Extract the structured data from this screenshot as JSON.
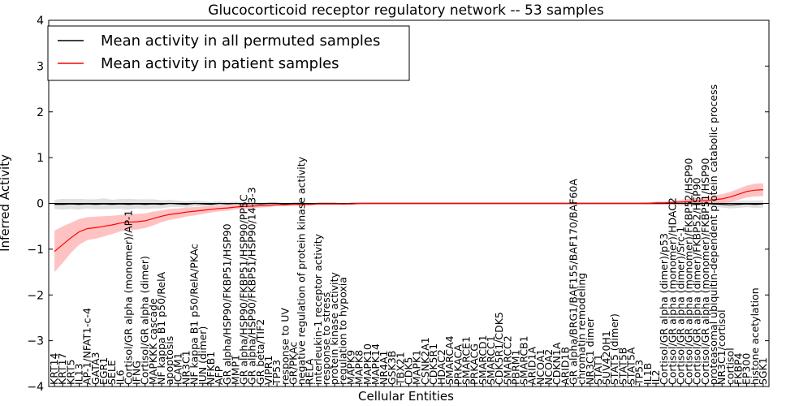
{
  "chart_data": {
    "type": "line",
    "title": "Glucocorticoid receptor regulatory network -- 53 samples",
    "xlabel": "Cellular Entities",
    "ylabel": "Inferred Activity",
    "ylim": [
      -4,
      4
    ],
    "yticks": [
      -4,
      -3,
      -2,
      -1,
      0,
      1,
      2,
      3,
      4
    ],
    "grid": false,
    "legend_position": "upper-left",
    "entities": [
      "KRT14",
      "KRT17",
      "KRT5",
      "IL13",
      "AP-1/NFAT1-c-4",
      "GATA3",
      "EGR1",
      "SELE",
      "IL6",
      "Cortisol/GR alpha (monomer)/AP-1",
      "IFNG",
      "Cortisol/GR alpha (dimer)",
      "MAPKKK cascade",
      "NF kappa B1 p50/RelA",
      "apoptosis",
      "ICAM1",
      "NR3C1",
      "NF kappa B1 p50/RelA/PKAc",
      "JUN (dimer)",
      "NFKB1",
      "AFP",
      "GR alpha/HSP90/FKBP51/HSP90",
      "MMP1",
      "GR alpha/HSP90/FKBP51/HSP90/PP5C",
      "GR alpha/HSP90/FKBP51/HSP90/14-3-3",
      "GR beta/TIF2",
      "VIPR1",
      "TP53",
      "response to UV",
      "GR/PKAc",
      "negative regulation of protein kinase activity",
      "RELA",
      "interleukin-1 receptor activity",
      "response to stress",
      "protein kinase activity",
      "regulation to hypoxia",
      "MAPK9",
      "MAPK8",
      "MAPK10",
      "MAPK14",
      "NR4A1",
      "GSK3B",
      "TBX21",
      "CDK5",
      "MAPK1",
      "CSNK2A1",
      "CDK5R1",
      "HDAC2",
      "SMARCA4",
      "PRKACA",
      "SMARCE1",
      "PRKACG",
      "SMARCD1",
      "SMARCC1",
      "CDK5R1/CDK5",
      "SMARCC2",
      "PBRM1",
      "SMARCB1",
      "ARID1A",
      "NCOA1",
      "NCOA2",
      "CDKN1A",
      "ARID1B",
      "GR alpha/BRG1/BAF155/BAF170/BAF60A",
      "chromatin remodeling",
      "NR3C1 dimer",
      "STAT1",
      "SUV420H1",
      "STAT5 (dimer)",
      "STAT5B",
      "STAT5A",
      "TP53",
      "IL1B",
      "IL2",
      "Cortisol/GR alpha (dimer)/p53",
      "Cortisol/GR alpha (monomer)/HDAC2",
      "Cortisol/GR alpha (dimer)/Src-1",
      "Cortisol/GR alpha (monomer)/FKBP52/HSP90",
      "Cortisol/GR alpha (dimer)/FKBP52/HSP90",
      "Cortisol/GR alpha (monomer)/FKBP51/HSP90",
      "proteasomal ubiquitin-dependent protein catabolic process",
      "NR3C1/cortisol",
      "cortisol",
      "FKBP4",
      "EP300",
      "histone acetylation",
      "SGK1"
    ],
    "series": [
      {
        "name": "Mean activity in all permuted samples",
        "color": "#000000",
        "band_color": "#bbbbbb",
        "values": [
          -0.02,
          -0.02,
          -0.01,
          -0.02,
          -0.01,
          -0.02,
          -0.01,
          -0.02,
          -0.01,
          -0.02,
          -0.01,
          -0.02,
          -0.01,
          -0.02,
          0.0,
          -0.01,
          -0.02,
          0.0,
          -0.01,
          -0.02,
          0.0,
          -0.01,
          0.0,
          -0.01,
          0.0,
          -0.01,
          0.0,
          0.0,
          -0.01,
          0.0,
          0.0,
          -0.01,
          0.0,
          0.0,
          0.0,
          -0.01,
          0.0,
          0.0,
          0.0,
          0.0,
          0.0,
          0.0,
          0.0,
          0.0,
          0.0,
          0.0,
          0.0,
          0.0,
          0.0,
          0.0,
          0.0,
          0.0,
          0.0,
          0.0,
          0.0,
          0.0,
          0.0,
          0.0,
          0.0,
          0.0,
          0.0,
          0.0,
          0.0,
          0.0,
          0.0,
          0.0,
          0.0,
          0.0,
          0.0,
          0.0,
          0.0,
          0.0,
          0.0,
          0.0,
          0.0,
          0.0,
          0.0,
          0.0,
          0.0,
          0.0,
          -0.01,
          -0.02,
          -0.03,
          -0.02,
          -0.01,
          -0.02,
          -0.01
        ],
        "band": [
          0.1,
          0.12,
          0.11,
          0.12,
          0.1,
          0.11,
          0.12,
          0.1,
          0.11,
          0.12,
          0.1,
          0.11,
          0.1,
          0.09,
          0.08,
          0.07,
          0.07,
          0.06,
          0.06,
          0.05,
          0.05,
          0.04,
          0.04,
          0.04,
          0.03,
          0.03,
          0.03,
          0.03,
          0.02,
          0.02,
          0.02,
          0.02,
          0.02,
          0.02,
          0.02,
          0.02,
          0.02,
          0.02,
          0.02,
          0.02,
          0.02,
          0.02,
          0.02,
          0.02,
          0.02,
          0.02,
          0.02,
          0.02,
          0.02,
          0.02,
          0.02,
          0.02,
          0.02,
          0.02,
          0.02,
          0.02,
          0.02,
          0.02,
          0.02,
          0.02,
          0.02,
          0.02,
          0.02,
          0.02,
          0.02,
          0.02,
          0.02,
          0.02,
          0.02,
          0.02,
          0.02,
          0.02,
          0.03,
          0.03,
          0.03,
          0.03,
          0.04,
          0.04,
          0.05,
          0.05,
          0.06,
          0.07,
          0.08,
          0.08,
          0.07,
          0.08,
          0.08
        ]
      },
      {
        "name": "Mean activity in patient samples",
        "color": "#ff0000",
        "band_color": "#ff9999",
        "values": [
          -1.05,
          -0.9,
          -0.75,
          -0.62,
          -0.55,
          -0.53,
          -0.5,
          -0.47,
          -0.43,
          -0.41,
          -0.4,
          -0.38,
          -0.33,
          -0.28,
          -0.24,
          -0.22,
          -0.19,
          -0.17,
          -0.15,
          -0.13,
          -0.11,
          -0.1,
          -0.08,
          -0.07,
          -0.06,
          -0.05,
          -0.04,
          -0.03,
          -0.03,
          -0.02,
          -0.02,
          -0.02,
          -0.01,
          -0.01,
          -0.01,
          -0.01,
          -0.01,
          0.0,
          0.0,
          0.0,
          0.0,
          0.0,
          0.0,
          0.0,
          0.0,
          0.0,
          0.0,
          0.0,
          0.0,
          0.0,
          0.0,
          0.0,
          0.0,
          0.0,
          0.0,
          0.0,
          0.0,
          0.0,
          0.0,
          0.0,
          0.0,
          0.0,
          0.0,
          0.0,
          0.0,
          0.0,
          0.0,
          0.0,
          0.0,
          0.0,
          0.0,
          0.0,
          0.0,
          0.01,
          0.01,
          0.02,
          0.03,
          0.04,
          0.05,
          0.06,
          0.08,
          0.1,
          0.14,
          0.2,
          0.26,
          0.29,
          0.3
        ],
        "band": [
          0.45,
          0.4,
          0.33,
          0.28,
          0.25,
          0.24,
          0.22,
          0.2,
          0.18,
          0.18,
          0.17,
          0.16,
          0.15,
          0.13,
          0.12,
          0.11,
          0.1,
          0.09,
          0.08,
          0.07,
          0.06,
          0.06,
          0.05,
          0.05,
          0.04,
          0.04,
          0.04,
          0.03,
          0.03,
          0.03,
          0.03,
          0.03,
          0.02,
          0.02,
          0.02,
          0.02,
          0.02,
          0.02,
          0.02,
          0.02,
          0.02,
          0.02,
          0.02,
          0.02,
          0.02,
          0.02,
          0.02,
          0.02,
          0.02,
          0.02,
          0.02,
          0.02,
          0.02,
          0.02,
          0.02,
          0.02,
          0.02,
          0.02,
          0.02,
          0.02,
          0.02,
          0.02,
          0.02,
          0.02,
          0.02,
          0.02,
          0.02,
          0.02,
          0.02,
          0.02,
          0.02,
          0.02,
          0.02,
          0.03,
          0.03,
          0.04,
          0.05,
          0.06,
          0.07,
          0.08,
          0.09,
          0.1,
          0.11,
          0.12,
          0.13,
          0.14,
          0.14
        ]
      }
    ]
  }
}
